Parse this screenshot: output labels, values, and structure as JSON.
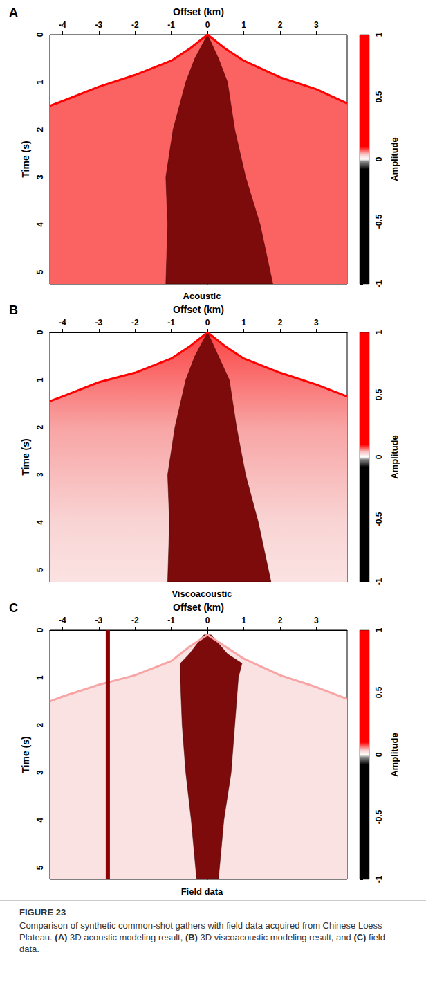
{
  "figure": "FIGURE 23",
  "caption": "Comparison of synthetic common-shot gathers with field data acquired from Chinese Loess Plateau. (A) 3D acoustic modeling result, (B) 3D viscoacoustic modeling result, and (C) field data.",
  "chart_data": [
    {
      "type": "gather",
      "panel": "A",
      "subtitle": "Acoustic",
      "xlabel": "Offset (km)",
      "ylabel": "Time (s)",
      "xlim": [
        -4.35,
        3.85
      ],
      "xticks": [
        -4,
        -3,
        -2,
        -1,
        0,
        1,
        2,
        3
      ],
      "ylim": [
        0,
        5.25
      ],
      "yticks": [
        0,
        1,
        2,
        3,
        4,
        5
      ],
      "first_arrival": {
        "x": [
          -4.35,
          -4,
          -3,
          -2,
          -1,
          -0.5,
          0,
          0.5,
          1,
          2,
          3,
          3.85
        ],
        "y": [
          1.5,
          1.4,
          1.1,
          0.85,
          0.55,
          0.3,
          0,
          0.3,
          0.55,
          0.9,
          1.15,
          1.45
        ],
        "amplitude": 0.3
      },
      "cone": {
        "time": [
          0,
          0.5,
          1,
          2,
          3,
          4,
          5.25
        ],
        "left": [
          0,
          -0.35,
          -0.6,
          -0.95,
          -1.15,
          -1.1,
          -1.15
        ],
        "right": [
          0,
          0.3,
          0.55,
          0.75,
          1.05,
          1.45,
          1.8
        ]
      },
      "noise": {
        "time": [
          0,
          5.25
        ],
        "amplitude": [
          0.07,
          0.07
        ]
      },
      "colorbar": {
        "label": "Amplitude",
        "range": [
          -1,
          1
        ],
        "ticks": [
          -1,
          -0.5,
          0,
          0.5,
          1
        ],
        "colormap": [
          {
            "value": -1,
            "color": "#000000"
          },
          {
            "value": -0.08,
            "color": "#000000"
          },
          {
            "value": -0.02,
            "color": "#888888"
          },
          {
            "value": 0,
            "color": "#ffffff"
          },
          {
            "value": 0.04,
            "color": "#f7c5c5"
          },
          {
            "value": 0.1,
            "color": "#ff0000"
          },
          {
            "value": 1,
            "color": "#ff0000"
          }
        ]
      }
    },
    {
      "type": "gather",
      "panel": "B",
      "subtitle": "Viscoacoustic",
      "xlabel": "Offset (km)",
      "ylabel": "Time (s)",
      "xlim": [
        -4.35,
        3.85
      ],
      "xticks": [
        -4,
        -3,
        -2,
        -1,
        0,
        1,
        2,
        3
      ],
      "ylim": [
        0,
        5.25
      ],
      "yticks": [
        0,
        1,
        2,
        3,
        4,
        5
      ],
      "first_arrival": {
        "x": [
          -4.35,
          -4,
          -3,
          -2,
          -1,
          -0.5,
          0,
          0.5,
          1,
          2,
          3,
          3.85
        ],
        "y": [
          1.45,
          1.35,
          1.05,
          0.85,
          0.55,
          0.3,
          0,
          0.3,
          0.55,
          0.85,
          1.1,
          1.35
        ],
        "amplitude": 0.8
      },
      "cone": {
        "time": [
          0,
          0.5,
          1,
          2,
          3,
          4,
          5.25
        ],
        "left": [
          0,
          -0.35,
          -0.6,
          -0.9,
          -1.1,
          -1.05,
          -1.1
        ],
        "right": [
          0,
          0.3,
          0.6,
          0.8,
          1.05,
          1.4,
          1.75
        ]
      },
      "noise": {
        "time": [
          0,
          2,
          4,
          5.25
        ],
        "amplitude": [
          0.08,
          0.05,
          0.03,
          0.02
        ]
      },
      "colorbar": {
        "label": "Amplitude",
        "range": [
          -1,
          1
        ],
        "ticks": [
          -1,
          -0.5,
          0,
          0.5,
          1
        ],
        "colormap": [
          {
            "value": -1,
            "color": "#000000"
          },
          {
            "value": -0.08,
            "color": "#000000"
          },
          {
            "value": -0.02,
            "color": "#888888"
          },
          {
            "value": 0,
            "color": "#ffffff"
          },
          {
            "value": 0.04,
            "color": "#f7c5c5"
          },
          {
            "value": 0.1,
            "color": "#ff0000"
          },
          {
            "value": 1,
            "color": "#ff0000"
          }
        ]
      }
    },
    {
      "type": "gather",
      "panel": "C",
      "subtitle": "Field data",
      "xlabel": "Offset (km)",
      "ylabel": "Time (s)",
      "xlim": [
        -4.35,
        3.85
      ],
      "xticks": [
        -4,
        -3,
        -2,
        -1,
        0,
        1,
        2,
        3
      ],
      "ylim": [
        0,
        5.25
      ],
      "yticks": [
        0,
        1,
        2,
        3,
        4,
        5
      ],
      "first_arrival": {
        "x": [
          -4.35,
          -4,
          -3,
          -2,
          -1,
          -0.5,
          0,
          0.5,
          1,
          2,
          3,
          3.85
        ],
        "y": [
          1.5,
          1.4,
          1.15,
          0.95,
          0.65,
          0.35,
          0.1,
          0.35,
          0.6,
          0.95,
          1.2,
          1.45
        ],
        "amplitude": 0.05
      },
      "cone": {
        "time": [
          0.1,
          0.5,
          0.7,
          1,
          2,
          3,
          4,
          5.25
        ],
        "left": [
          -0.1,
          -0.5,
          -0.75,
          -0.75,
          -0.7,
          -0.6,
          -0.45,
          -0.3
        ],
        "right": [
          0.1,
          0.55,
          0.95,
          0.85,
          0.75,
          0.65,
          0.45,
          0.3
        ]
      },
      "noise": {
        "time": [
          0,
          5.25
        ],
        "amplitude": [
          0.02,
          0.02
        ]
      },
      "noisy_trace_offset": -2.75,
      "colorbar": {
        "label": "Amplitude",
        "range": [
          -1,
          1
        ],
        "ticks": [
          -1,
          -0.5,
          0,
          0.5,
          1
        ],
        "colormap": [
          {
            "value": -1,
            "color": "#000000"
          },
          {
            "value": -0.08,
            "color": "#000000"
          },
          {
            "value": -0.02,
            "color": "#888888"
          },
          {
            "value": 0,
            "color": "#ffffff"
          },
          {
            "value": 0.04,
            "color": "#f7c5c5"
          },
          {
            "value": 0.1,
            "color": "#ff0000"
          },
          {
            "value": 1,
            "color": "#ff0000"
          }
        ]
      }
    }
  ]
}
